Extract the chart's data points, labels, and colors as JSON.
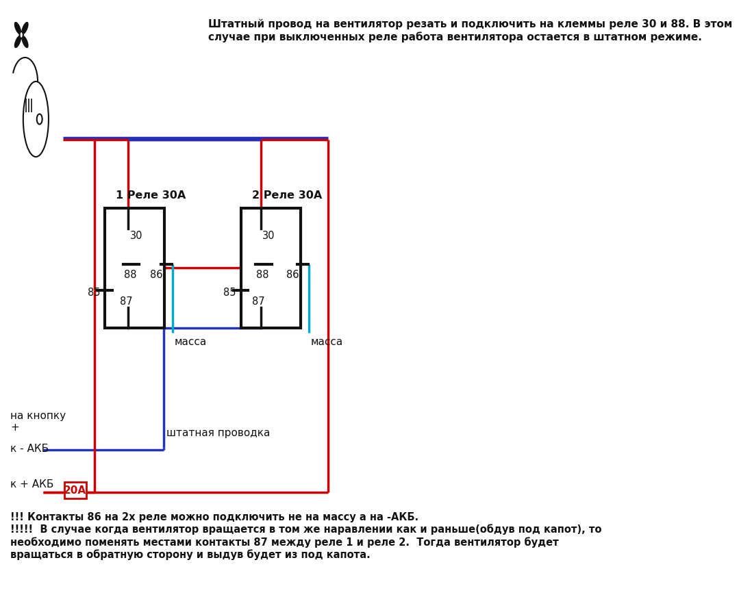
{
  "bg_color": "#ffffff",
  "title_text": "Штатный провод на вентилятор резать и подключить на клеммы реле 30 и 88. В этом\nслучае при выключенных реле работа вентилятора остается в штатном режиме.",
  "footer_text": "!!! Контакты 86 на 2х реле можно подключить не на массу а на -АКБ.\n!!!!!  В случае когда вентилятор вращается в том же наравлении как и раньше(обдув под капот), то\nнеобходимо поменять местами контакты 87 между реле 1 и реле 2.  Тогда вентилятор будет\nвращаться в обратную сторону и выдув будет из под капота.",
  "relay1_label": "1 Реле 30А",
  "relay2_label": "2 Реле 30А",
  "massa_label": "масса",
  "shtatnaya_label": "штатная проводка",
  "na_knopku_label": "на кнопку\n+",
  "k_akb_minus_label": "к - АКБ",
  "k_akb_plus_label": "к + АКБ",
  "fuse_label": "20А",
  "red": "#cc0000",
  "blue": "#2233bb",
  "cyan": "#00aacc",
  "black": "#111111",
  "lw": 2.5
}
